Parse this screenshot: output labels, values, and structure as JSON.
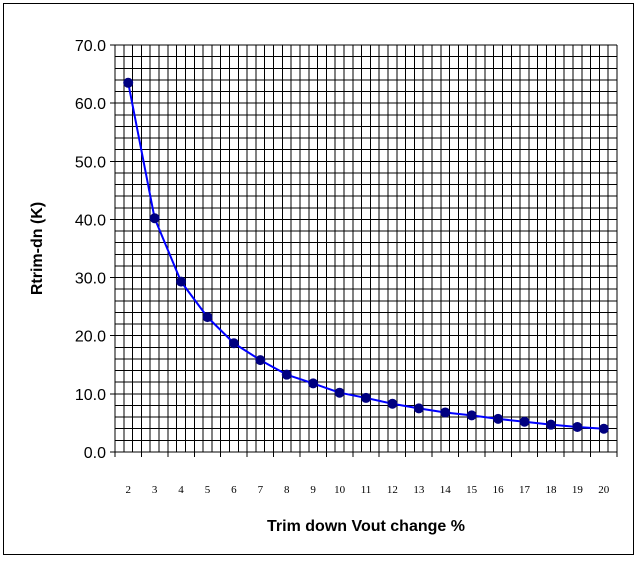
{
  "chart_data": {
    "type": "line",
    "title": "",
    "xlabel": "Trim down Vout change %",
    "ylabel": "Rtrim-dn (K)",
    "x": [
      2,
      3,
      4,
      5,
      6,
      7,
      8,
      9,
      10,
      11,
      12,
      13,
      14,
      15,
      16,
      17,
      18,
      19,
      20
    ],
    "x_tick_labels": [
      "2",
      "3",
      "4",
      "5",
      "6",
      "7",
      "8",
      "9",
      "10",
      "11",
      "12",
      "13",
      "14",
      "15",
      "16",
      "17",
      "18",
      "19",
      "20"
    ],
    "y_tick_labels": [
      "0.0",
      "10.0",
      "20.0",
      "30.0",
      "40.0",
      "50.0",
      "60.0",
      "70.0"
    ],
    "ylim": [
      0,
      70
    ],
    "y_major_step": 10,
    "y_minor_step": 2,
    "x_minor_divisions": 3,
    "grid": true,
    "legend": "none",
    "series": [
      {
        "values": [
          63.5,
          40.2,
          29.3,
          23.2,
          18.7,
          15.8,
          13.3,
          11.8,
          10.2,
          9.3,
          8.3,
          7.5,
          6.8,
          6.3,
          5.7,
          5.2,
          4.7,
          4.3,
          4.0
        ],
        "color": "#0000ff",
        "marker_color": "#000080"
      }
    ]
  }
}
